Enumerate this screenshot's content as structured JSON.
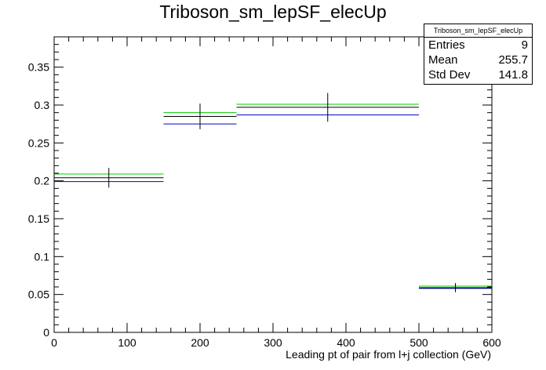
{
  "title": "Triboson_sm_lepSF_elecUp",
  "stats": {
    "name": "Triboson_sm_lepSF_elecUp",
    "rows": [
      {
        "label": "Entries",
        "value": "9"
      },
      {
        "label": "Mean",
        "value": "255.7"
      },
      {
        "label": "Std Dev",
        "value": "141.8"
      }
    ]
  },
  "colors": {
    "nominal": "#000000",
    "up": "#00cc00",
    "down": "#0000cc"
  },
  "chart_data": {
    "type": "histogram",
    "title": "Triboson_sm_lepSF_elecUp",
    "xlabel": "Leading pt of pair from l+j collection (GeV)",
    "ylabel": "",
    "xlim": [
      0,
      600
    ],
    "ylim": [
      0,
      0.39
    ],
    "xticks": [
      0,
      100,
      200,
      300,
      400,
      500,
      600
    ],
    "xtick_labels": [
      "0",
      "100",
      "200",
      "300",
      "400",
      "500",
      "600"
    ],
    "yticks": [
      0,
      0.05,
      0.1,
      0.15,
      0.2,
      0.25,
      0.3,
      0.35
    ],
    "ytick_labels": [
      "0",
      "0.05",
      "0.1",
      "0.15",
      "0.2",
      "0.25",
      "0.3",
      "0.35"
    ],
    "grid": false,
    "bins": [
      {
        "low": 0,
        "high": 150
      },
      {
        "low": 150,
        "high": 250
      },
      {
        "low": 250,
        "high": 500
      },
      {
        "low": 500,
        "high": 600
      }
    ],
    "series": [
      {
        "values": [
          0.204,
          0.285,
          0.297,
          0.059
        ],
        "errors": [
          0.013,
          0.017,
          0.019,
          0.006
        ],
        "color": "#000000"
      },
      {
        "values": [
          0.209,
          0.29,
          0.301,
          0.061
        ],
        "color": "#00cc00"
      },
      {
        "values": [
          0.199,
          0.275,
          0.287,
          0.058
        ],
        "color": "#0000cc"
      }
    ]
  }
}
